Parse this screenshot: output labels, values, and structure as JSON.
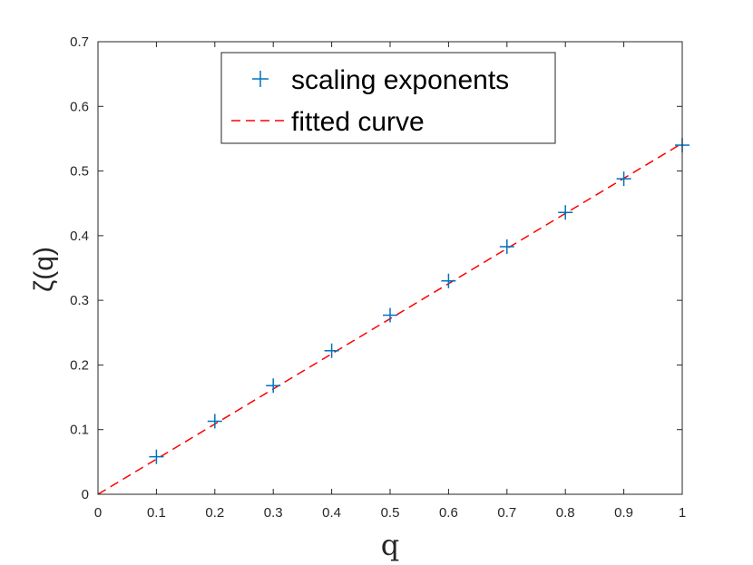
{
  "chart_data": {
    "type": "scatter",
    "xlabel": "q",
    "ylabel": "ζ(q)",
    "xlim": [
      0,
      1
    ],
    "ylim": [
      0,
      0.7
    ],
    "x_ticks": [
      "0",
      "0.1",
      "0.2",
      "0.3",
      "0.4",
      "0.5",
      "0.6",
      "0.7",
      "0.8",
      "0.9",
      "1"
    ],
    "y_ticks": [
      "0",
      "0.1",
      "0.2",
      "0.3",
      "0.4",
      "0.5",
      "0.6",
      "0.7"
    ],
    "grid": false,
    "legend_position": "top-center",
    "series": [
      {
        "name": "scaling exponents",
        "marker": "plus",
        "color": "#0072bd",
        "x": [
          0.1,
          0.2,
          0.3,
          0.4,
          0.5,
          0.6,
          0.7,
          0.8,
          0.9,
          1.0
        ],
        "y": [
          0.058,
          0.113,
          0.168,
          0.222,
          0.277,
          0.33,
          0.383,
          0.436,
          0.488,
          0.54
        ]
      },
      {
        "name": "fitted curve",
        "style": "dashed-line",
        "color": "#ff0000",
        "x": [
          0,
          1
        ],
        "y": [
          0,
          0.543
        ]
      }
    ]
  }
}
